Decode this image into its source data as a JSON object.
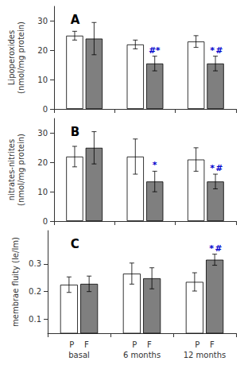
{
  "chart_data": [
    {
      "type": "bar",
      "title": "A",
      "ylabel": "Lipoperoxides\n(nmol/mg protein)",
      "categories": [
        null,
        null,
        null
      ],
      "ylim": [
        0,
        35
      ],
      "yticks": [
        0,
        10,
        20,
        30
      ],
      "grid": false,
      "series": [
        {
          "color": "#ffffff",
          "values": [
            25.0,
            22.0,
            23.0
          ],
          "errors": [
            1.5,
            1.5,
            2.0
          ]
        },
        {
          "color": "#7f7f7f",
          "values": [
            24.0,
            15.5,
            15.5
          ],
          "errors": [
            5.5,
            2.5,
            2.5
          ],
          "annotations": [
            null,
            [
              {
                "text": "#",
                "color": "#0000cc"
              },
              {
                "text": "*",
                "color": "#0000cc"
              }
            ],
            [
              {
                "text": "*",
                "color": "#0000cc"
              },
              {
                "text": "#",
                "color": "#0000cc"
              }
            ]
          ]
        }
      ]
    },
    {
      "type": "bar",
      "title": "B",
      "ylabel": "nitrates-nitrites\n(nmol/mg protein)",
      "categories": [
        null,
        null,
        null
      ],
      "ylim": [
        0,
        35
      ],
      "yticks": [
        0,
        10,
        20,
        30
      ],
      "grid": false,
      "series": [
        {
          "color": "#ffffff",
          "values": [
            22.0,
            22.0,
            21.0
          ],
          "errors": [
            3.5,
            6.0,
            4.0
          ]
        },
        {
          "color": "#7f7f7f",
          "values": [
            25.0,
            13.5,
            13.5
          ],
          "errors": [
            5.5,
            3.5,
            2.5
          ],
          "annotations": [
            null,
            [
              {
                "text": "*",
                "color": "#0000cc"
              }
            ],
            [
              {
                "text": "*",
                "color": "#0000cc"
              },
              {
                "text": "#",
                "color": "#0000cc"
              }
            ]
          ]
        }
      ]
    },
    {
      "type": "bar",
      "title": "C",
      "ylabel": "membrae fluity (Ie/Im)",
      "categories": [
        "P    F\nbasal",
        "P    F\n6 months",
        "P    F\n12 months"
      ],
      "ylim": [
        0.05,
        0.42
      ],
      "yticks": [
        0.1,
        0.2,
        0.3
      ],
      "grid": false,
      "series": [
        {
          "color": "#ffffff",
          "values": [
            0.225,
            0.265,
            0.235
          ],
          "errors": [
            0.028,
            0.038,
            0.033
          ]
        },
        {
          "color": "#7f7f7f",
          "values": [
            0.228,
            0.248,
            0.315
          ],
          "errors": [
            0.028,
            0.038,
            0.02
          ],
          "annotations": [
            null,
            null,
            [
              {
                "text": "*",
                "color": "#0000cc"
              },
              {
                "text": "#",
                "color": "#0000cc"
              }
            ]
          ]
        }
      ]
    }
  ]
}
